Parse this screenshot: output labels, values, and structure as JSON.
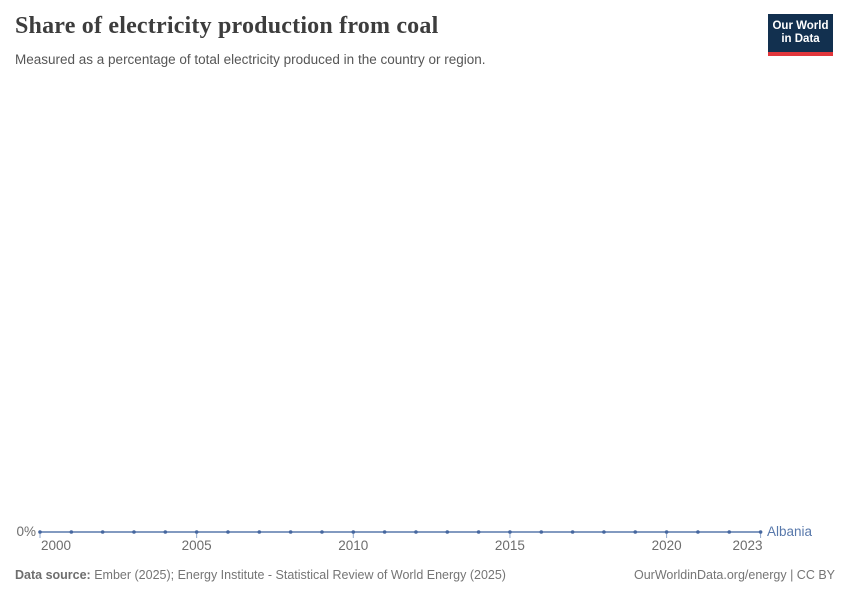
{
  "header": {
    "title": "Share of electricity production from coal",
    "subtitle": "Measured as a percentage of total electricity produced in the country or region.",
    "logo": {
      "line1": "Our World",
      "line2": "in Data",
      "bg_color": "#12304f",
      "accent_color": "#e2363b"
    }
  },
  "chart_data": {
    "type": "line",
    "title": "Share of electricity production from coal",
    "subtitle": "Measured as a percentage of total electricity produced in the country or region.",
    "x": [
      2000,
      2001,
      2002,
      2003,
      2004,
      2005,
      2006,
      2007,
      2008,
      2009,
      2010,
      2011,
      2012,
      2013,
      2014,
      2015,
      2016,
      2017,
      2018,
      2019,
      2020,
      2021,
      2022,
      2023
    ],
    "series": [
      {
        "name": "Albania",
        "color": "#5878ab",
        "marker_color": "#46679f",
        "values": [
          0,
          0,
          0,
          0,
          0,
          0,
          0,
          0,
          0,
          0,
          0,
          0,
          0,
          0,
          0,
          0,
          0,
          0,
          0,
          0,
          0,
          0,
          0,
          0
        ]
      }
    ],
    "x_ticks": [
      2000,
      2005,
      2010,
      2015,
      2020,
      2023
    ],
    "y_ticks": [
      "0%"
    ],
    "xlabel": "",
    "ylabel": "",
    "x_range": [
      2000,
      2023
    ],
    "grid": false,
    "legend_position": "end-of-line"
  },
  "footer": {
    "source_label": "Data source:",
    "source_text": "Ember (2025); Energy Institute - Statistical Review of World Energy (2025)",
    "link": "OurWorldinData.org/energy | CC BY"
  }
}
